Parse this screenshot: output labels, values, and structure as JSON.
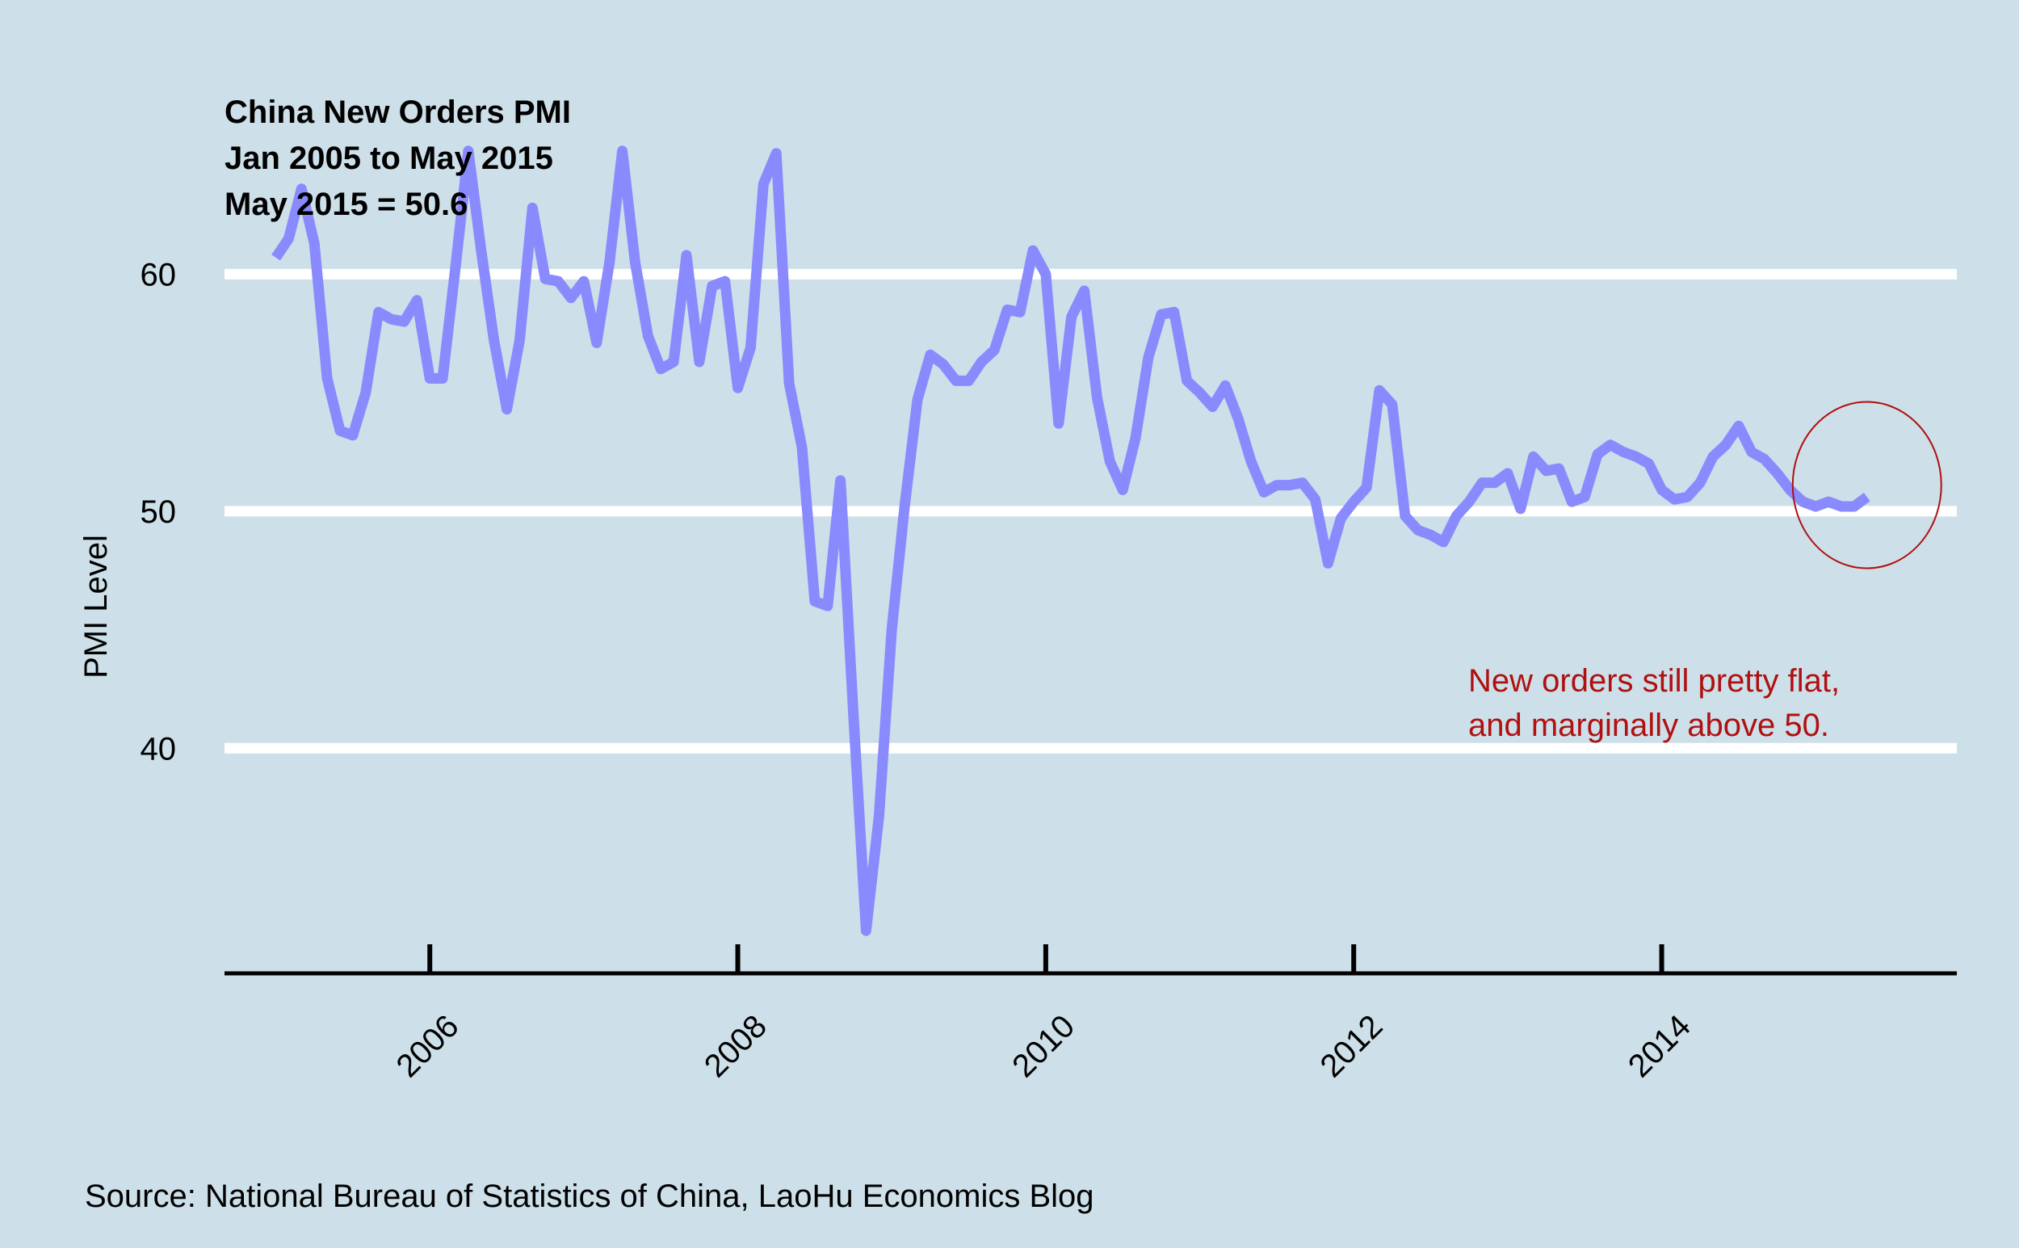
{
  "chart_data": {
    "type": "line",
    "title": [
      "China New Orders PMI",
      "Jan 2005 to May 2015",
      "May 2015 = 50.6"
    ],
    "xlabel": "",
    "ylabel": "PMI Level",
    "xlim": [
      "2004-09",
      "2015-12"
    ],
    "ylim": [
      30.5,
      68.5
    ],
    "x_ticks": [
      2006,
      2008,
      2010,
      2012,
      2014
    ],
    "y_ticks": [
      40,
      50,
      60
    ],
    "grid": "horizontal",
    "source": "Source: National Bureau of Statistics of China, LaoHu Economics Blog",
    "annotation": {
      "lines": [
        "New orders still pretty flat,",
        "and marginally above 50."
      ],
      "circle_center": {
        "x": "2015-05",
        "y": 51.1
      },
      "color": "#b01010"
    },
    "colors": {
      "line": "#8a8aff",
      "background": "#cddfe8",
      "gridline": "#ffffff",
      "axis": "#000000"
    },
    "series": [
      {
        "x": [
          "2005-01",
          "2005-02",
          "2005-03",
          "2005-04",
          "2005-05",
          "2005-06",
          "2005-07",
          "2005-08",
          "2005-09",
          "2005-10",
          "2005-11",
          "2005-12",
          "2006-01",
          "2006-02",
          "2006-03",
          "2006-04",
          "2006-05",
          "2006-06",
          "2006-07",
          "2006-08",
          "2006-09",
          "2006-10",
          "2006-11",
          "2006-12",
          "2007-01",
          "2007-02",
          "2007-03",
          "2007-04",
          "2007-05",
          "2007-06",
          "2007-07",
          "2007-08",
          "2007-09",
          "2007-10",
          "2007-11",
          "2007-12",
          "2008-01",
          "2008-02",
          "2008-03",
          "2008-04",
          "2008-05",
          "2008-06",
          "2008-07",
          "2008-08",
          "2008-09",
          "2008-10",
          "2008-11",
          "2008-12",
          "2009-01",
          "2009-02",
          "2009-03",
          "2009-04",
          "2009-05",
          "2009-06",
          "2009-07",
          "2009-08",
          "2009-09",
          "2009-10",
          "2009-11",
          "2009-12",
          "2010-01",
          "2010-02",
          "2010-03",
          "2010-04",
          "2010-05",
          "2010-06",
          "2010-07",
          "2010-08",
          "2010-09",
          "2010-10",
          "2010-11",
          "2010-12",
          "2011-01",
          "2011-02",
          "2011-03",
          "2011-04",
          "2011-05",
          "2011-06",
          "2011-07",
          "2011-08",
          "2011-09",
          "2011-10",
          "2011-11",
          "2011-12",
          "2012-01",
          "2012-02",
          "2012-03",
          "2012-04",
          "2012-05",
          "2012-06",
          "2012-07",
          "2012-08",
          "2012-09",
          "2012-10",
          "2012-11",
          "2012-12",
          "2013-01",
          "2013-02",
          "2013-03",
          "2013-04",
          "2013-05",
          "2013-06",
          "2013-07",
          "2013-08",
          "2013-09",
          "2013-10",
          "2013-11",
          "2013-12",
          "2014-01",
          "2014-02",
          "2014-03",
          "2014-04",
          "2014-05",
          "2014-06",
          "2014-07",
          "2014-08",
          "2014-09",
          "2014-10",
          "2014-11",
          "2014-12",
          "2015-01",
          "2015-02",
          "2015-03",
          "2015-04",
          "2015-05"
        ],
        "values": [
          60.7,
          61.5,
          63.6,
          61.3,
          55.6,
          53.4,
          53.2,
          55.0,
          58.4,
          58.1,
          58.0,
          58.9,
          55.6,
          55.6,
          60.3,
          65.2,
          61.0,
          57.2,
          54.3,
          57.2,
          62.8,
          59.8,
          59.7,
          59.0,
          59.7,
          57.1,
          60.5,
          65.2,
          60.5,
          57.4,
          56.0,
          56.3,
          60.8,
          56.3,
          59.5,
          59.7,
          55.2,
          56.9,
          63.8,
          65.1,
          55.4,
          52.7,
          46.2,
          46.0,
          51.3,
          41.5,
          32.3,
          37.1,
          45.0,
          50.2,
          54.7,
          56.6,
          56.2,
          55.5,
          55.5,
          56.3,
          56.8,
          58.5,
          58.4,
          61.0,
          60.0,
          53.7,
          58.2,
          59.3,
          54.8,
          52.1,
          50.9,
          53.1,
          56.5,
          58.3,
          58.4,
          55.5,
          55.0,
          54.4,
          55.3,
          53.9,
          52.1,
          50.8,
          51.1,
          51.1,
          51.2,
          50.5,
          47.8,
          49.7,
          50.4,
          51.0,
          55.1,
          54.5,
          49.8,
          49.2,
          49.0,
          48.7,
          49.8,
          50.4,
          51.2,
          51.2,
          51.6,
          50.1,
          52.3,
          51.7,
          51.8,
          50.4,
          50.6,
          52.4,
          52.8,
          52.5,
          52.3,
          52.0,
          50.9,
          50.5,
          50.6,
          51.2,
          52.3,
          52.8,
          53.6,
          52.5,
          52.2,
          51.6,
          50.9,
          50.4,
          50.2,
          50.4,
          50.2,
          50.2,
          50.6
        ]
      }
    ]
  }
}
